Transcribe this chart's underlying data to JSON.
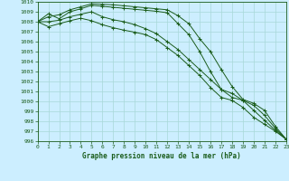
{
  "x": [
    0,
    1,
    2,
    3,
    4,
    5,
    6,
    7,
    8,
    9,
    10,
    11,
    12,
    13,
    14,
    15,
    16,
    17,
    18,
    19,
    20,
    21,
    22,
    23
  ],
  "line1": [
    1008.0,
    1008.5,
    1008.7,
    1009.2,
    1009.5,
    1009.8,
    1009.75,
    1009.7,
    1009.6,
    1009.5,
    1009.4,
    1009.3,
    1009.2,
    1008.6,
    1007.8,
    1006.3,
    1005.0,
    1003.2,
    1001.5,
    1000.2,
    999.8,
    999.1,
    997.5,
    996.2
  ],
  "line2": [
    1008.0,
    1008.8,
    1008.3,
    1009.0,
    1009.3,
    1009.65,
    1009.55,
    1009.45,
    1009.35,
    1009.25,
    1009.15,
    1009.05,
    1008.9,
    1007.8,
    1006.7,
    1005.0,
    1003.0,
    1001.2,
    1000.4,
    1000.1,
    999.6,
    998.6,
    997.3,
    996.2
  ],
  "line3": [
    1008.0,
    1008.0,
    1008.15,
    1008.5,
    1008.75,
    1009.0,
    1008.5,
    1008.2,
    1008.0,
    1007.7,
    1007.3,
    1006.8,
    1006.0,
    1005.2,
    1004.2,
    1003.2,
    1002.2,
    1001.2,
    1000.8,
    1000.1,
    999.1,
    998.1,
    997.1,
    996.2
  ],
  "line4": [
    1008.0,
    1007.5,
    1007.8,
    1008.1,
    1008.35,
    1008.1,
    1007.7,
    1007.4,
    1007.15,
    1006.95,
    1006.7,
    1006.2,
    1005.4,
    1004.6,
    1003.6,
    1002.6,
    1001.4,
    1000.4,
    1000.1,
    999.4,
    998.4,
    997.7,
    997.0,
    996.2
  ],
  "color": "#1a5c1a",
  "bg_color": "#cceeff",
  "grid_color": "#a8d8d8",
  "xlabel": "Graphe pression niveau de la mer (hPa)",
  "ylim": [
    996,
    1010
  ],
  "xlim": [
    0,
    23
  ]
}
